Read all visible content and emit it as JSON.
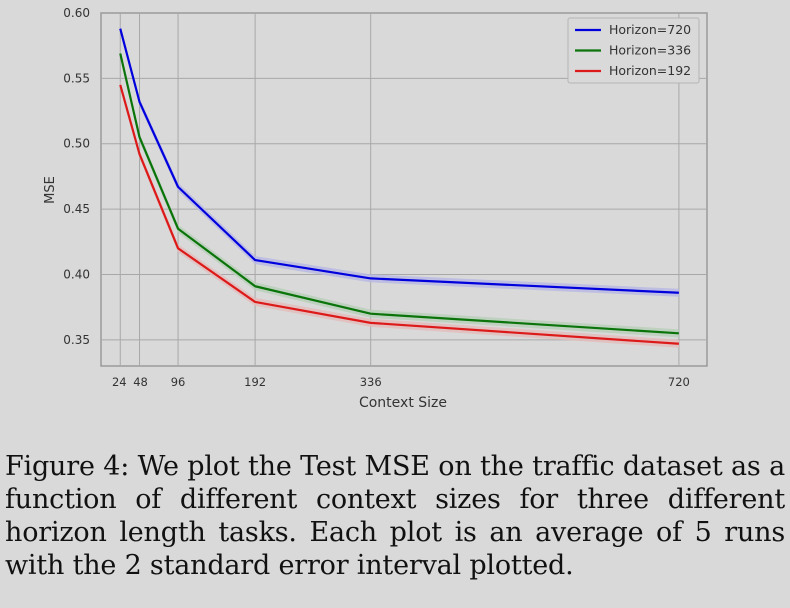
{
  "chart_data": {
    "type": "line",
    "title": "",
    "xlabel": "Context Size",
    "ylabel": "MSE",
    "x": [
      24,
      48,
      96,
      192,
      336,
      720
    ],
    "x_ticks": [
      "24",
      "48",
      "96",
      "192",
      "336",
      "720"
    ],
    "y_ticks": [
      "0.35",
      "0.40",
      "0.45",
      "0.50",
      "0.55",
      "0.60"
    ],
    "xlim": [
      0,
      755
    ],
    "ylim": [
      0.33,
      0.6
    ],
    "grid": true,
    "legend_position": "top-right",
    "series": [
      {
        "name": "Horizon=720",
        "color": "#0000dd",
        "band": "#b9b9e4",
        "values": [
          0.588,
          0.532,
          0.467,
          0.411,
          0.397,
          0.386
        ]
      },
      {
        "name": "Horizon=336",
        "color": "#0a740a",
        "band": "#b9cfb9",
        "values": [
          0.569,
          0.505,
          0.435,
          0.391,
          0.37,
          0.355
        ]
      },
      {
        "name": "Horizon=192",
        "color": "#dd1a1a",
        "band": "#e3bcbc",
        "values": [
          0.545,
          0.492,
          0.42,
          0.379,
          0.363,
          0.347
        ]
      }
    ]
  },
  "caption": {
    "text": "Figure 4: We plot the Test MSE on the traffic dataset as a function of different context sizes for three different horizon length tasks. Each plot is an average of 5 runs with the 2 standard error interval plotted."
  }
}
